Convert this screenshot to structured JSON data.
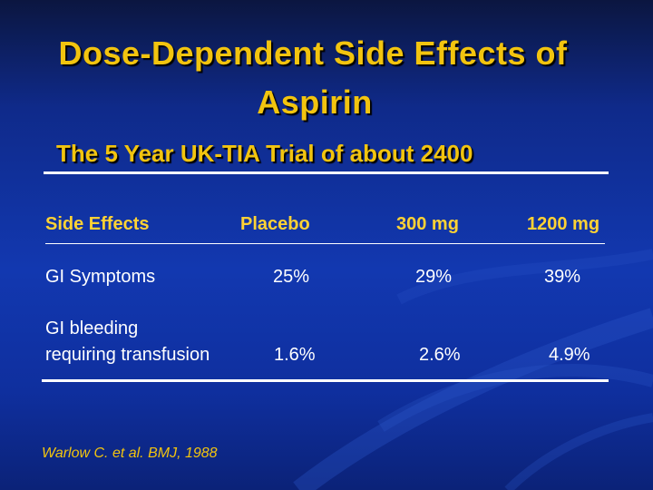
{
  "slide": {
    "title_line1": "Dose-Dependent Side Effects of",
    "title_line2": "Aspirin",
    "subtitle": "The 5 Year UK-TIA Trial of about 2400"
  },
  "table": {
    "headers": [
      "Side Effects",
      "Placebo",
      "300 mg",
      "1200 mg"
    ],
    "rows": [
      {
        "label": "GI Symptoms",
        "values": [
          "25%",
          "29%",
          "39%"
        ]
      },
      {
        "label_line1": "GI bleeding",
        "label_line2": "requiring transfusion",
        "values": [
          "1.6%",
          "2.6%",
          "4.9%"
        ]
      }
    ]
  },
  "citation": "Warlow C. et al. BMJ, 1988",
  "colors": {
    "title": "#f2c40f",
    "header": "#ffd234",
    "text": "#ffffff",
    "background": "#1238b0"
  }
}
